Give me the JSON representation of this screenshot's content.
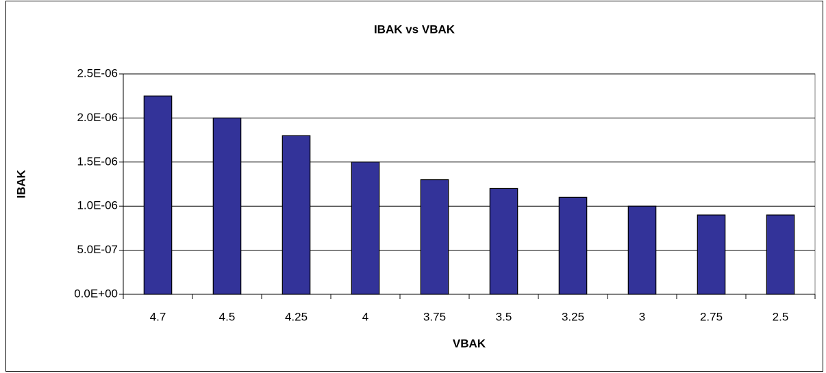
{
  "chart_data": {
    "type": "bar",
    "title": "IBAK vs VBAK",
    "x_label": "VBAK",
    "y_label": "IBAK",
    "categories": [
      "4.7",
      "4.5",
      "4.25",
      "4",
      "3.75",
      "3.5",
      "3.25",
      "3",
      "2.75",
      "2.5"
    ],
    "values": [
      2.25e-06,
      2e-06,
      1.8e-06,
      1.5e-06,
      1.3e-06,
      1.2e-06,
      1.1e-06,
      1e-06,
      9e-07,
      9e-07
    ],
    "color": "#333399",
    "ylim": [
      0,
      2.5e-06
    ],
    "yticks": [
      {
        "value": 0,
        "label": "0.0E+00"
      },
      {
        "value": 5e-07,
        "label": "5.0E-07"
      },
      {
        "value": 1e-06,
        "label": "1.0E-06"
      },
      {
        "value": 1.5e-06,
        "label": "1.5E-06"
      },
      {
        "value": 2e-06,
        "label": "2.0E-06"
      },
      {
        "value": 2.5e-06,
        "label": "2.5E-06"
      }
    ],
    "grid": true
  }
}
